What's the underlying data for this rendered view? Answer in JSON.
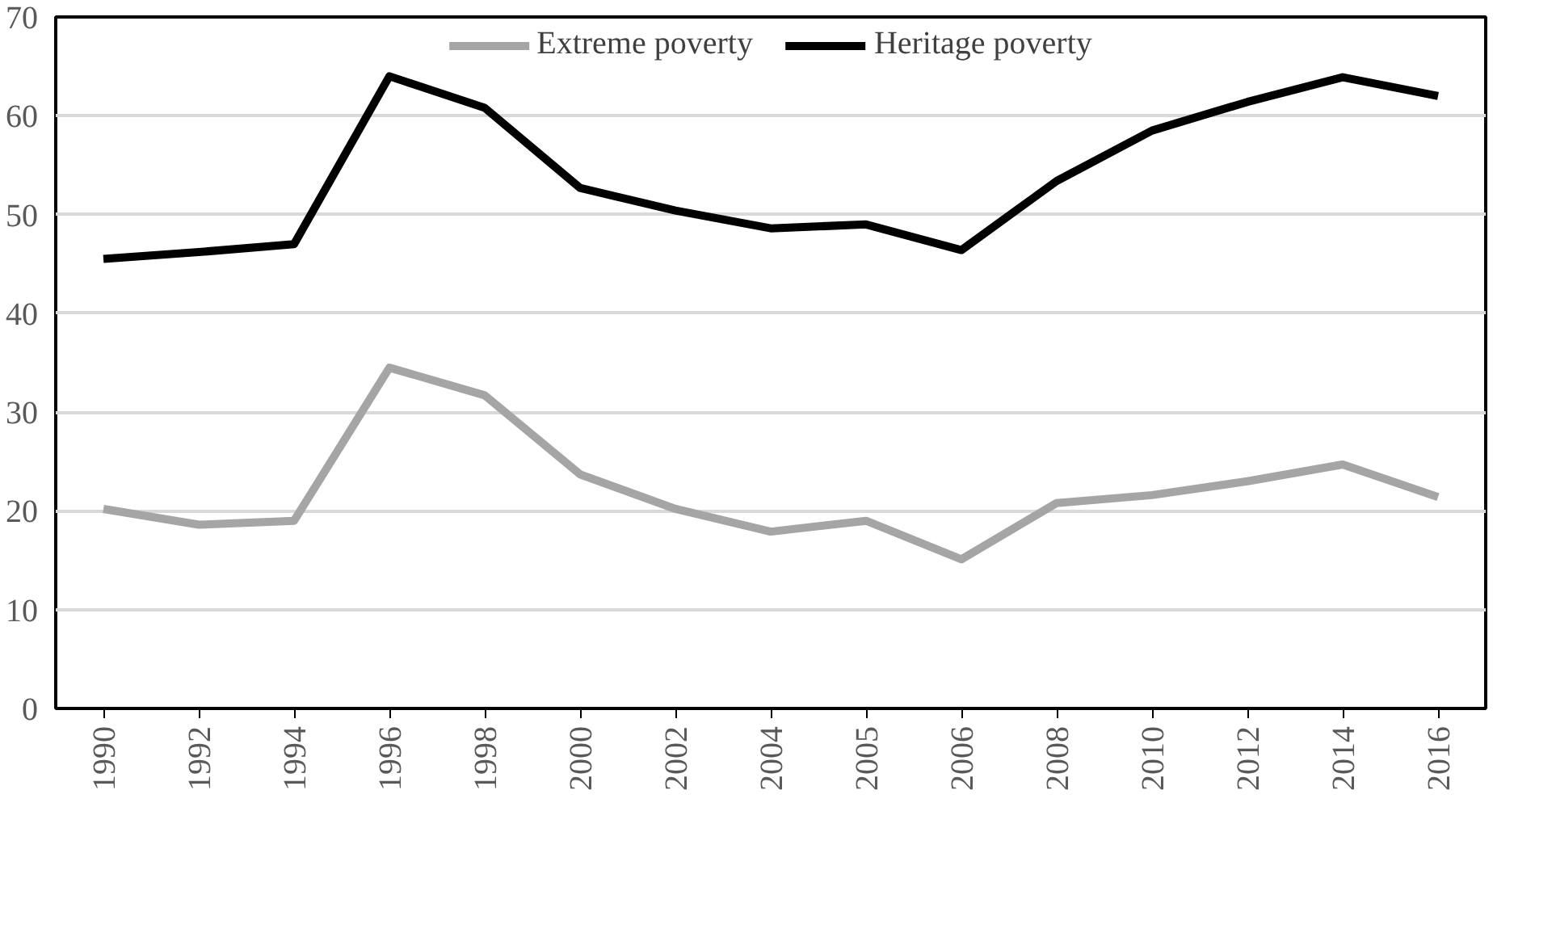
{
  "chart_data": {
    "type": "line",
    "categories": [
      "1990",
      "1992",
      "1994",
      "1996",
      "1998",
      "2000",
      "2002",
      "2004",
      "2005",
      "2006",
      "2008",
      "2010",
      "2012",
      "2014",
      "2016"
    ],
    "series": [
      {
        "name": "Extreme poverty",
        "color": "#a5a5a5",
        "values": [
          20.2,
          18.6,
          19.0,
          34.5,
          31.7,
          23.7,
          20.2,
          17.9,
          19.0,
          15.1,
          20.8,
          21.6,
          23.0,
          24.7,
          21.4
        ]
      },
      {
        "name": "Heritage poverty",
        "color": "#000000",
        "values": [
          45.5,
          46.2,
          47.0,
          64.0,
          60.8,
          52.7,
          50.4,
          48.6,
          49.0,
          46.4,
          53.4,
          58.5,
          61.4,
          63.9,
          62.0
        ]
      }
    ],
    "ylim": [
      0,
      70
    ],
    "yticks": [
      0,
      10,
      20,
      30,
      40,
      50,
      60,
      70
    ],
    "grid": "y",
    "legend": "top",
    "marker": "none",
    "line_style": "solid"
  }
}
